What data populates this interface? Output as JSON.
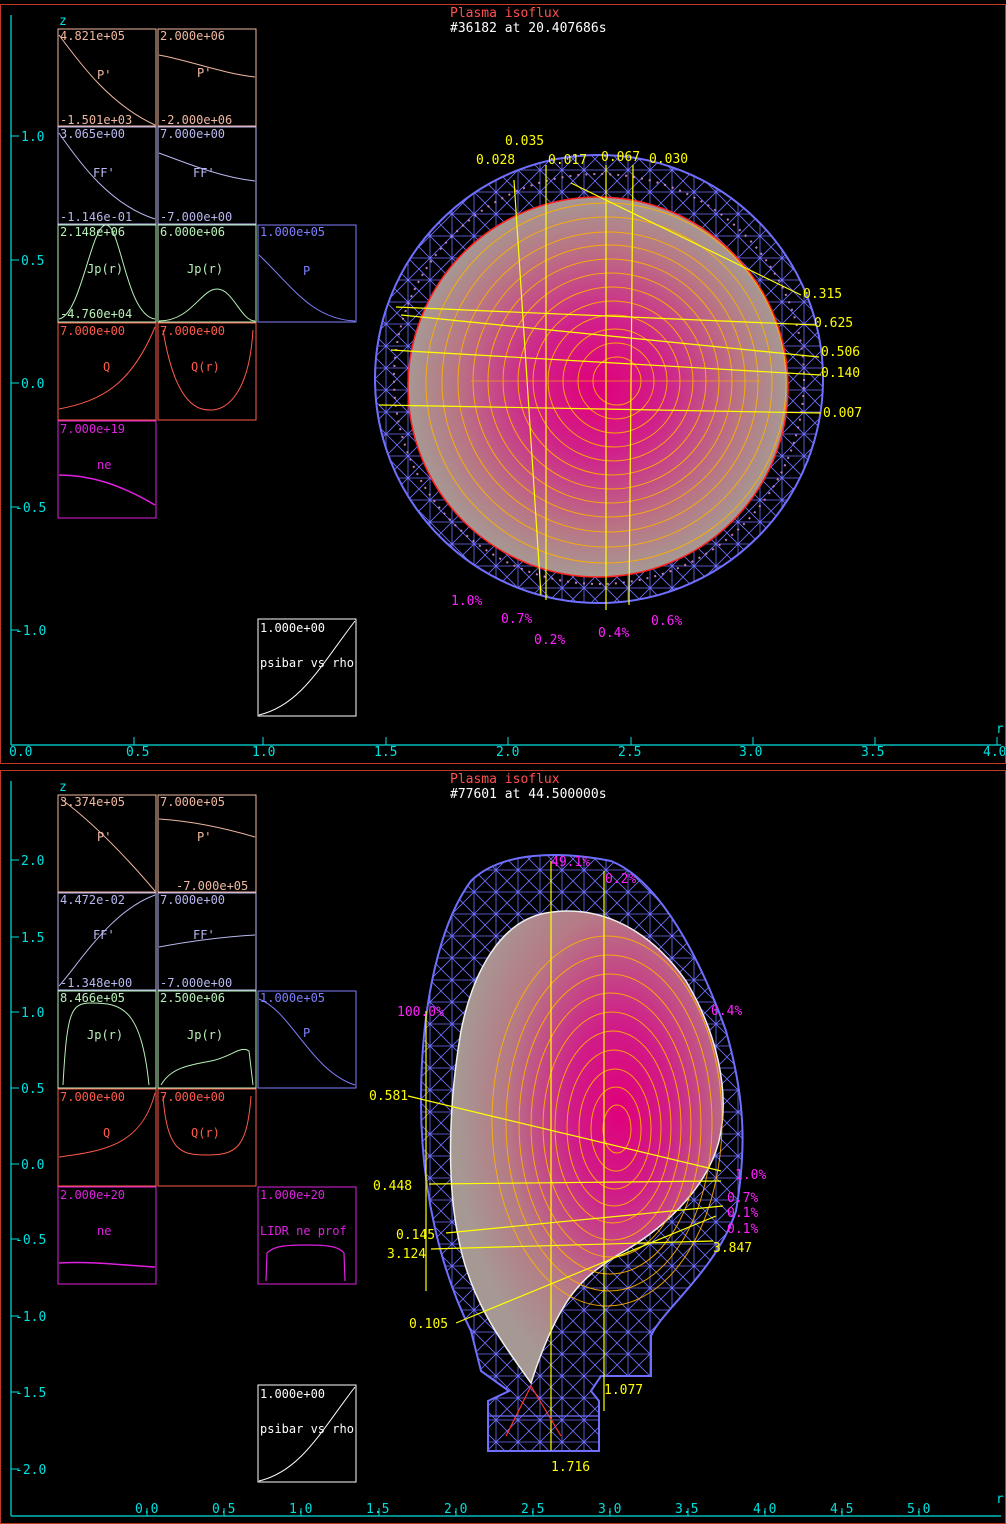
{
  "panels": [
    {
      "title": "Plasma isoflux",
      "shot": "#36182 at 20.407686s",
      "z_label": "z",
      "r_label": "r",
      "x_ticks": [
        "0.0",
        "0.5",
        "1.0",
        "1.5",
        "2.0",
        "2.5",
        "3.0",
        "3.5",
        "4.0"
      ],
      "y_ticks": [
        "1.0",
        "0.5",
        "0.0",
        "-0.5",
        "-1.0"
      ],
      "subplots": [
        {
          "top": "4.821e+05",
          "label": "P'",
          "bottom": "-1.501e+03",
          "color": "#f0b8a0"
        },
        {
          "top": "2.000e+06",
          "label": "P'",
          "bottom": "-2.000e+06",
          "color": "#f0b8a0"
        },
        {
          "top": "3.065e+00",
          "label": "FF'",
          "bottom": "-1.146e-01",
          "color": "#b8b8f0"
        },
        {
          "top": "7.000e+00",
          "label": "FF'",
          "bottom": "-7.000e+00",
          "color": "#b8b8f0"
        },
        {
          "top": "2.148e+06",
          "label": "Jp(r)",
          "bottom": "-4.760e+04",
          "color": "#b8f0b8"
        },
        {
          "top": "6.000e+06",
          "label": "Jp(r)",
          "bottom": "",
          "color": "#b8f0b8"
        },
        {
          "top": "1.000e+05",
          "label": "P",
          "bottom": "",
          "color": "#7f7fff"
        },
        {
          "top": "7.000e+00",
          "label": "Q",
          "bottom": "",
          "color": "#ff5a4a"
        },
        {
          "top": "7.000e+00",
          "label": "Q(r)",
          "bottom": "",
          "color": "#ff5a4a"
        },
        {
          "top": "7.000e+19",
          "label": "ne",
          "bottom": "",
          "color": "#e020e0"
        },
        {
          "top": "1.000e+00",
          "label": "psibar vs rho",
          "bottom": "",
          "color": "#ffffff"
        }
      ],
      "chord_labels": [
        "0.035",
        "0.028",
        "0.017",
        "0.067",
        "0.030",
        "0.315",
        "0.625",
        "0.506",
        "0.140",
        "0.007"
      ],
      "percent_labels": [
        "1.0%",
        "0.7%",
        "0.2%",
        "0.4%",
        "0.6%"
      ]
    },
    {
      "title": "Plasma isoflux",
      "shot": "#77601 at 44.500000s",
      "z_label": "z",
      "r_label": "r",
      "x_ticks": [
        "0.0",
        "0.5",
        "1.0",
        "1.5",
        "2.0",
        "2.5",
        "3.0",
        "3.5",
        "4.0",
        "4.5",
        "5.0"
      ],
      "y_ticks": [
        "2.0",
        "1.5",
        "1.0",
        "0.5",
        "0.0",
        "-0.5",
        "-1.0",
        "-1.5",
        "-2.0"
      ],
      "subplots": [
        {
          "top": "3.374e+05",
          "label": "P'",
          "bottom": "",
          "color": "#f0b8a0"
        },
        {
          "top": "7.000e+05",
          "label": "P'",
          "bottom": "-7.000e+05",
          "color": "#f0b8a0"
        },
        {
          "top": "4.472e-02",
          "label": "FF'",
          "bottom": "-1.348e+00",
          "color": "#b8b8f0"
        },
        {
          "top": "7.000e+00",
          "label": "FF'",
          "bottom": "-7.000e+00",
          "color": "#b8b8f0"
        },
        {
          "top": "8.466e+05",
          "label": "Jp(r)",
          "bottom": "",
          "color": "#b8f0b8"
        },
        {
          "top": "2.500e+06",
          "label": "Jp(r)",
          "bottom": "",
          "color": "#b8f0b8"
        },
        {
          "top": "1.000e+05",
          "label": "P",
          "bottom": "",
          "color": "#7f7fff"
        },
        {
          "top": "7.000e+00",
          "label": "Q",
          "bottom": "",
          "color": "#ff5a4a"
        },
        {
          "top": "7.000e+00",
          "label": "Q(r)",
          "bottom": "",
          "color": "#ff5a4a"
        },
        {
          "top": "2.000e+20",
          "label": "ne",
          "bottom": "",
          "color": "#e020e0"
        },
        {
          "top": "1.000e+20",
          "label": "LIDR ne prof",
          "bottom": "",
          "color": "#e020e0"
        },
        {
          "top": "1.000e+00",
          "label": "psibar vs rho",
          "bottom": "",
          "color": "#ffffff"
        }
      ],
      "chord_labels": [
        "0.581",
        "0.448",
        "0.145",
        "3.124",
        "0.105",
        "3.847",
        "1.077",
        "1.716"
      ],
      "percent_labels": [
        "49.1%",
        "0.2%",
        "100.0%",
        "0.4%",
        "1.0%",
        "0.7%",
        "0.1%",
        "0.1%"
      ]
    }
  ],
  "colors": {
    "frame": "#c0392b",
    "axis": "#00e0e0",
    "title": "#ff5050",
    "shot": "#ffffff",
    "chord": "#ffff00",
    "percent": "#ff20ff",
    "mesh": "#6f6fff",
    "plasma_edge": "#9b8a86",
    "plasma_core": "#e0007a",
    "flux": "#ffb000"
  }
}
